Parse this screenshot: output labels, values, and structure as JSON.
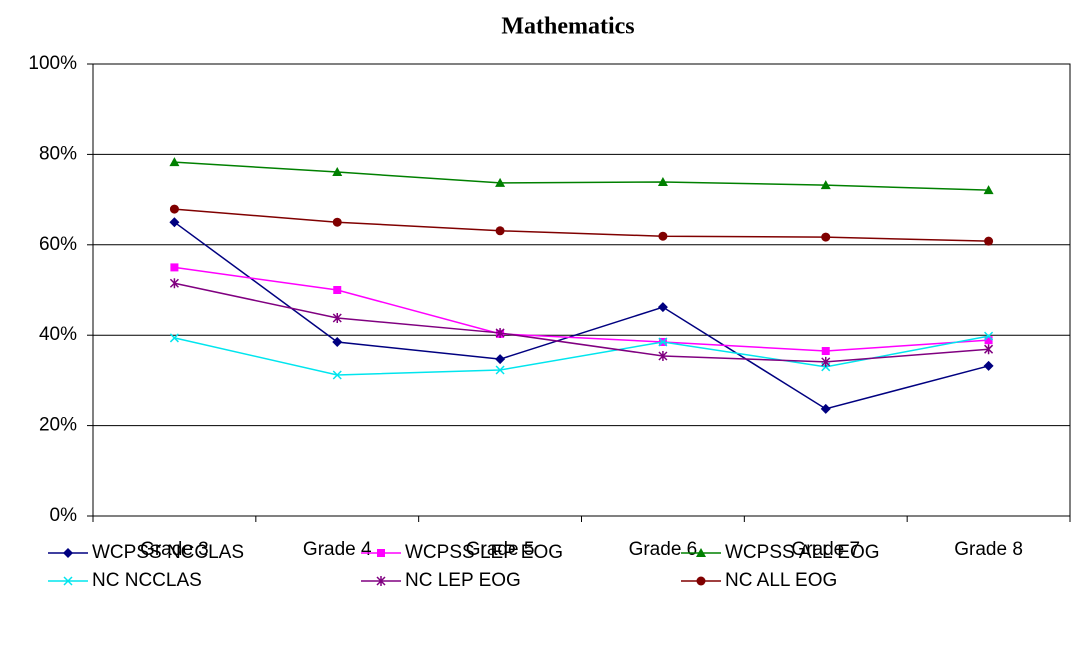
{
  "chart_data": {
    "type": "line",
    "title": "Mathematics",
    "categories": [
      "Grade 3",
      "Grade 4",
      "Grade 5",
      "Grade 6",
      "Grade 7",
      "Grade 8"
    ],
    "ylim": [
      0,
      100
    ],
    "yticks": [
      {
        "value": 0,
        "label": "0%"
      },
      {
        "value": 20,
        "label": "20%"
      },
      {
        "value": 40,
        "label": "40%"
      },
      {
        "value": 60,
        "label": "60%"
      },
      {
        "value": 80,
        "label": "80%"
      },
      {
        "value": 100,
        "label": "100%"
      }
    ],
    "grid": true,
    "series": [
      {
        "name": "WCPSS NCCLAS",
        "color": "#000080",
        "marker": "diamond",
        "values": [
          65.0,
          38.5,
          34.7,
          46.2,
          23.7,
          33.2
        ]
      },
      {
        "name": "WCPSS LEP EOG",
        "color": "#ff00ff",
        "marker": "square",
        "values": [
          55.0,
          50.0,
          40.3,
          38.5,
          36.5,
          38.9
        ]
      },
      {
        "name": "WCPSS ALL EOG",
        "color": "#008000",
        "marker": "triangle",
        "values": [
          78.3,
          76.1,
          73.7,
          73.9,
          73.2,
          72.1
        ]
      },
      {
        "name": "NC NCCLAS",
        "color": "#00e5ee",
        "marker": "x",
        "values": [
          39.4,
          31.2,
          32.3,
          38.5,
          33.0,
          39.8
        ]
      },
      {
        "name": "NC LEP EOG",
        "color": "#800080",
        "marker": "star",
        "values": [
          51.5,
          43.8,
          40.5,
          35.4,
          34.1,
          36.9
        ]
      },
      {
        "name": "NC ALL EOG",
        "color": "#800000",
        "marker": "circle",
        "values": [
          67.9,
          65.0,
          63.1,
          61.9,
          61.7,
          60.8
        ]
      }
    ]
  }
}
